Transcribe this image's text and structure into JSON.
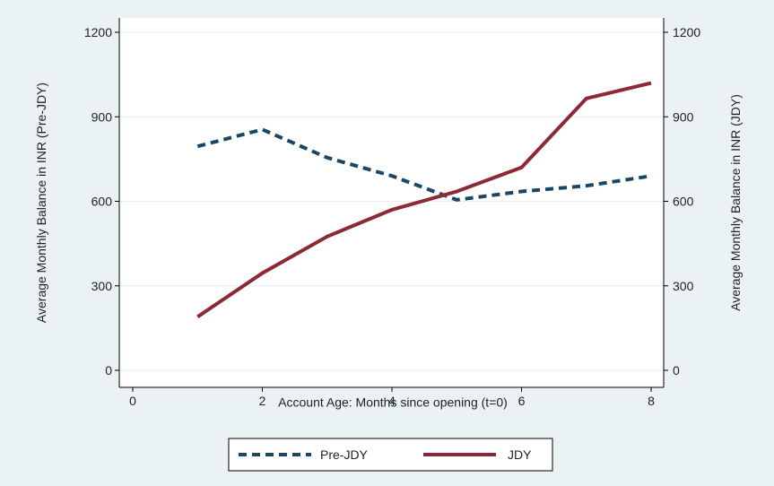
{
  "chart_data": {
    "type": "line",
    "xlabel": "Account Age: Months since opening (t=0)",
    "ylabel_left": "Average Monthly Balance in INR (Pre-JDY)",
    "ylabel_right": "Average Monthly Balance in INR (JDY)",
    "xlim": [
      0,
      8
    ],
    "ylim": [
      0,
      1200
    ],
    "ylim_right": [
      0,
      1200
    ],
    "x_ticks": [
      0,
      2,
      4,
      6,
      8
    ],
    "y_ticks": [
      0,
      300,
      600,
      900,
      1200
    ],
    "x_tick_labels": [
      "0",
      "2",
      "4",
      "6",
      "8"
    ],
    "y_tick_labels": [
      "0",
      "300",
      "600",
      "900",
      "1200"
    ],
    "grid": "horizontal",
    "legend_position": "bottom",
    "series": [
      {
        "name": "Pre-JDY",
        "axis": "left",
        "color": "#1a4766",
        "style": "dashed",
        "x": [
          1,
          2,
          3,
          4,
          5,
          6,
          7,
          8
        ],
        "values": [
          795,
          855,
          755,
          690,
          605,
          635,
          655,
          690
        ]
      },
      {
        "name": "JDY",
        "axis": "right",
        "color": "#8b2a35",
        "style": "solid",
        "x": [
          1,
          2,
          3,
          4,
          5,
          6,
          7,
          8
        ],
        "values": [
          190,
          345,
          475,
          570,
          635,
          720,
          965,
          1020
        ]
      }
    ]
  }
}
